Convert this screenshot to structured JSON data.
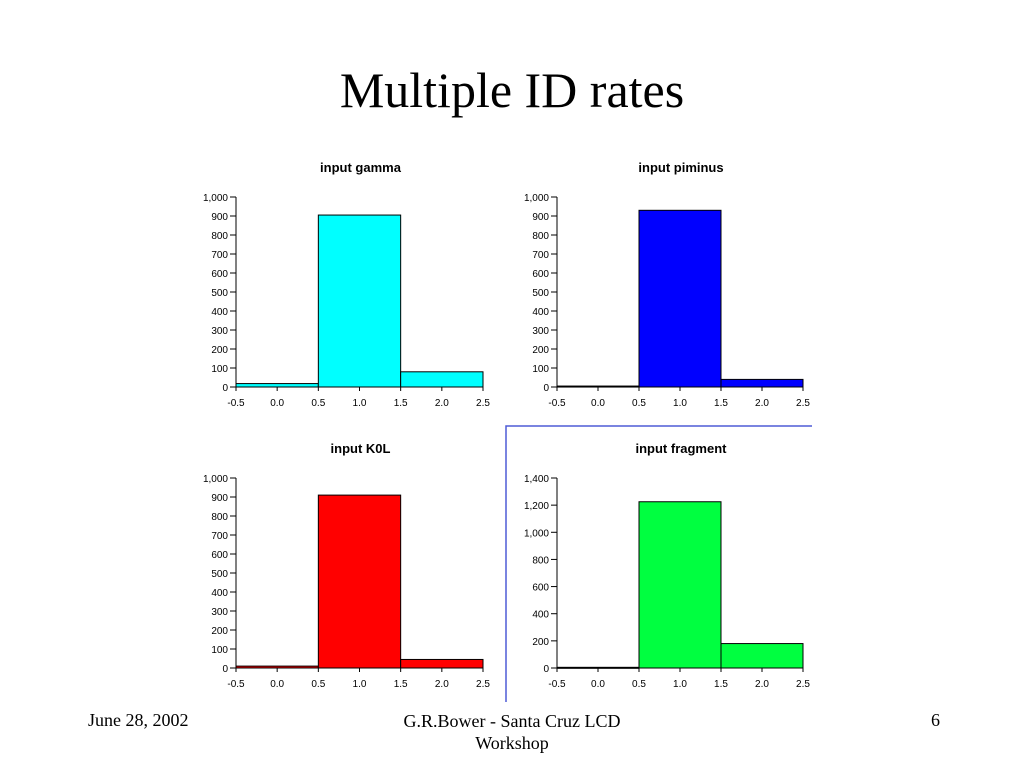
{
  "slide": {
    "title": "Multiple ID rates",
    "footer_date": "June 28, 2002",
    "footer_center": "G.R.Bower - Santa Cruz LCD Workshop",
    "page_number": "6"
  },
  "chart_data": [
    {
      "type": "bar",
      "title": "input gamma",
      "xlabel": "",
      "ylabel": "",
      "bins": [
        [
          -0.5,
          0.5
        ],
        [
          0.5,
          1.5
        ],
        [
          1.5,
          2.5
        ]
      ],
      "values": [
        18,
        905,
        80
      ],
      "xticks": [
        "-0.5",
        "0.0",
        "0.5",
        "1.0",
        "1.5",
        "2.0",
        "2.5"
      ],
      "yticks": [
        "0",
        "100",
        "200",
        "300",
        "400",
        "500",
        "600",
        "700",
        "800",
        "900",
        "1,000"
      ],
      "ylim": [
        0,
        1000
      ],
      "xlim": [
        -0.5,
        2.5
      ],
      "color": "#00ffff",
      "framed": false
    },
    {
      "type": "bar",
      "title": "input piminus",
      "xlabel": "",
      "ylabel": "",
      "bins": [
        [
          -0.5,
          0.5
        ],
        [
          0.5,
          1.5
        ],
        [
          1.5,
          2.5
        ]
      ],
      "values": [
        5,
        930,
        40
      ],
      "xticks": [
        "-0.5",
        "0.0",
        "0.5",
        "1.0",
        "1.5",
        "2.0",
        "2.5"
      ],
      "yticks": [
        "0",
        "100",
        "200",
        "300",
        "400",
        "500",
        "600",
        "700",
        "800",
        "900",
        "1,000"
      ],
      "ylim": [
        0,
        1000
      ],
      "xlim": [
        -0.5,
        2.5
      ],
      "color": "#0000ff",
      "framed": false
    },
    {
      "type": "bar",
      "title": "input K0L",
      "xlabel": "",
      "ylabel": "",
      "bins": [
        [
          -0.5,
          0.5
        ],
        [
          0.5,
          1.5
        ],
        [
          1.5,
          2.5
        ]
      ],
      "values": [
        10,
        910,
        45
      ],
      "xticks": [
        "-0.5",
        "0.0",
        "0.5",
        "1.0",
        "1.5",
        "2.0",
        "2.5"
      ],
      "yticks": [
        "0",
        "100",
        "200",
        "300",
        "400",
        "500",
        "600",
        "700",
        "800",
        "900",
        "1,000"
      ],
      "ylim": [
        0,
        1000
      ],
      "xlim": [
        -0.5,
        2.5
      ],
      "color": "#ff0000",
      "framed": false
    },
    {
      "type": "bar",
      "title": "input fragment",
      "xlabel": "",
      "ylabel": "",
      "bins": [
        [
          -0.5,
          0.5
        ],
        [
          0.5,
          1.5
        ],
        [
          1.5,
          2.5
        ]
      ],
      "values": [
        5,
        1225,
        180
      ],
      "xticks": [
        "-0.5",
        "0.0",
        "0.5",
        "1.0",
        "1.5",
        "2.0",
        "2.5"
      ],
      "yticks": [
        "0",
        "200",
        "400",
        "600",
        "800",
        "1,000",
        "1,200",
        "1,400"
      ],
      "ylim": [
        0,
        1400
      ],
      "xlim": [
        -0.5,
        2.5
      ],
      "color": "#00ff40",
      "framed": true
    }
  ]
}
